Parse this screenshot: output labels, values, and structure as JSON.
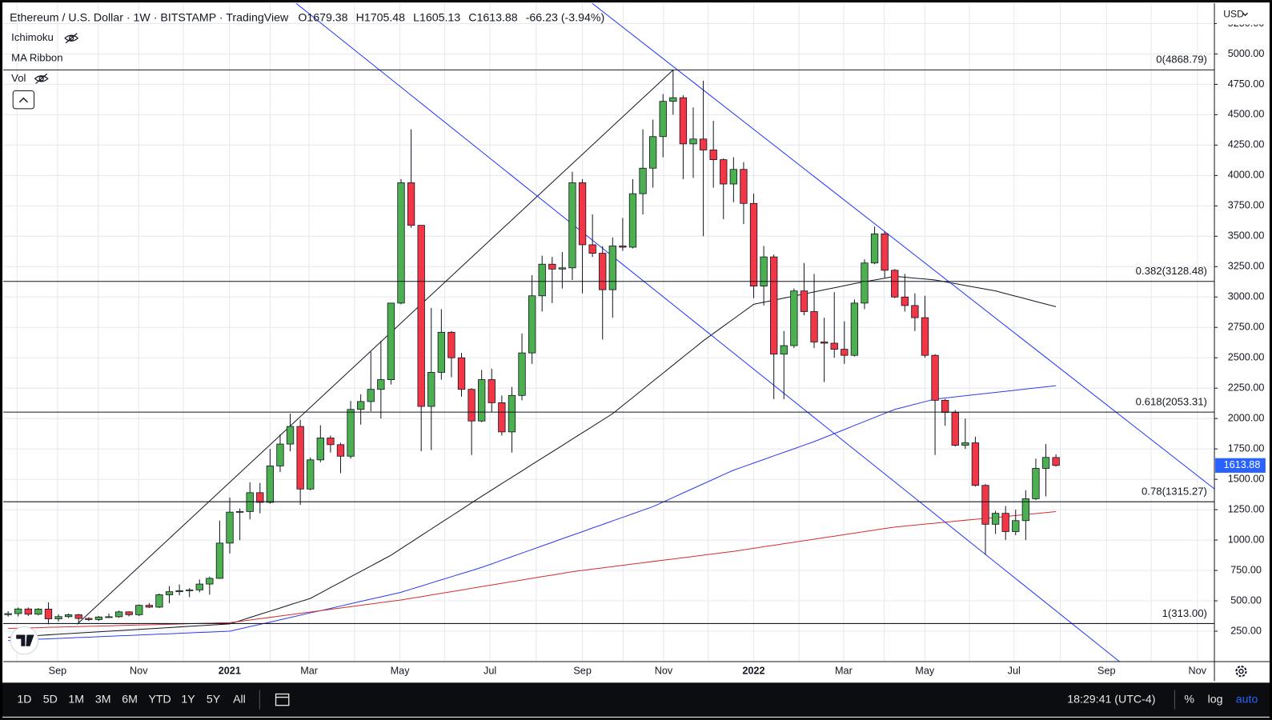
{
  "header": {
    "title": "Ethereum / U.S. Dollar · 1W · BITSTAMP · TradingView",
    "ohlc": [
      "O1679.38",
      "H1705.48",
      "L1605.13",
      "C1613.88"
    ],
    "change": "-66.23 (-3.94%)"
  },
  "indicators": [
    "Ichimoku",
    "MA Ribbon",
    "Vol"
  ],
  "currency": "USD",
  "toolbar": {
    "ranges": [
      "1D",
      "5D",
      "1M",
      "3M",
      "6M",
      "YTD",
      "1Y",
      "5Y",
      "All"
    ],
    "time": "18:29:41 (UTC-4)",
    "options": [
      "%",
      "log",
      "auto"
    ]
  },
  "chart_data": {
    "type": "candlestick",
    "up_color": "#4caf50",
    "down_color": "#f23645",
    "ylim": [
      0,
      5417
    ],
    "yticks": [
      {
        "value": 250,
        "label": "250.00"
      },
      {
        "value": 500,
        "label": "500.00"
      },
      {
        "value": 750,
        "label": "750.00"
      },
      {
        "value": 1000,
        "label": "1000.00"
      },
      {
        "value": 1250,
        "label": "1250.00"
      },
      {
        "value": 1500,
        "label": "1500.00"
      },
      {
        "value": 1750,
        "label": "1750.00"
      },
      {
        "value": 2000,
        "label": "2000.00"
      },
      {
        "value": 2250,
        "label": "2250.00"
      },
      {
        "value": 2500,
        "label": "2500.00"
      },
      {
        "value": 2750,
        "label": "2750.00"
      },
      {
        "value": 3000,
        "label": "3000.00"
      },
      {
        "value": 3250,
        "label": "3250.00"
      },
      {
        "value": 3500,
        "label": "3500.00"
      },
      {
        "value": 3750,
        "label": "3750.00"
      },
      {
        "value": 4000,
        "label": "4000.00"
      },
      {
        "value": 4250,
        "label": "4250.00"
      },
      {
        "value": 4500,
        "label": "4500.00"
      },
      {
        "value": 4750,
        "label": "4750.00"
      },
      {
        "value": 5000,
        "label": "5000.00"
      },
      {
        "value": 5250,
        "label": "5250.00"
      }
    ],
    "grid": true,
    "xtick_labels": [
      "Sep",
      "Nov",
      "2021",
      "Mar",
      "May",
      "Jul",
      "Sep",
      "Nov",
      "2022",
      "Mar",
      "May",
      "Jul",
      "Sep",
      "Nov"
    ],
    "open": [
      386,
      395,
      433,
      390,
      432,
      352,
      370,
      385,
      355,
      346,
      367,
      369,
      409,
      386,
      463,
      448,
      550,
      575,
      584,
      590,
      638,
      685,
      975,
      1230,
      1235,
      1390,
      1310,
      1610,
      1790,
      1935,
      1420,
      1660,
      1840,
      1785,
      1690,
      2075,
      2140,
      2240,
      2320,
      2950,
      3940,
      3590,
      2100,
      2380,
      2710,
      2500,
      2240,
      1980,
      2320,
      2130,
      1890,
      2190,
      2540,
      3010,
      3270,
      3230,
      3240,
      3940,
      3430,
      3360,
      3060,
      3420,
      3410,
      3850,
      4060,
      4320,
      4610,
      4640,
      4260,
      4300,
      4210,
      4130,
      3930,
      4050,
      3770,
      3090,
      3330,
      2530,
      2600,
      3050,
      2880,
      2630,
      2620,
      2570,
      2520,
      2950,
      3280,
      3520,
      3220,
      3000,
      2930,
      2830,
      2520,
      2150,
      2050,
      1780,
      1800,
      1450,
      1130,
      1220,
      1070,
      1160,
      1340,
      1590,
      1679.38
    ],
    "high": [
      415,
      445,
      445,
      440,
      488,
      388,
      395,
      392,
      365,
      375,
      395,
      420,
      414,
      470,
      482,
      560,
      621,
      635,
      605,
      675,
      700,
      1160,
      1350,
      1260,
      1475,
      1470,
      1750,
      1870,
      2040,
      1990,
      1680,
      1945,
      1860,
      1800,
      2145,
      2200,
      2550,
      2640,
      2950,
      3970,
      4380,
      3590,
      2910,
      2900,
      2720,
      2540,
      2250,
      2400,
      2410,
      2190,
      2260,
      2700,
      3180,
      3340,
      3330,
      3370,
      4030,
      3970,
      3680,
      3420,
      3490,
      3650,
      3970,
      4380,
      4460,
      4670,
      4868,
      4660,
      4560,
      4780,
      4450,
      4140,
      4150,
      4110,
      3850,
      3420,
      3350,
      2720,
      3070,
      3280,
      3190,
      2830,
      3040,
      2800,
      2980,
      3310,
      3580,
      3540,
      3230,
      3190,
      3030,
      3010,
      2530,
      2160,
      2070,
      2000,
      1850,
      1460,
      1240,
      1280,
      1250,
      1410,
      1670,
      1790,
      1705.48
    ],
    "low": [
      370,
      372,
      375,
      380,
      308,
      330,
      358,
      309,
      333,
      335,
      360,
      360,
      372,
      375,
      440,
      440,
      480,
      545,
      530,
      570,
      550,
      680,
      890,
      1000,
      1170,
      1220,
      1300,
      1560,
      1730,
      1290,
      1410,
      1640,
      1720,
      1550,
      1670,
      1950,
      2060,
      2000,
      2280,
      2940,
      3570,
      1730,
      1740,
      2320,
      2340,
      2180,
      1700,
      1970,
      2050,
      1860,
      1720,
      2150,
      2450,
      2880,
      2950,
      3070,
      3140,
      3030,
      3330,
      2650,
      2830,
      3380,
      3400,
      3680,
      3900,
      4150,
      4500,
      3970,
      3980,
      3500,
      3900,
      3640,
      3780,
      3600,
      2990,
      2930,
      2160,
      2160,
      2580,
      2850,
      2580,
      2300,
      2500,
      2450,
      2510,
      2900,
      3270,
      3160,
      2990,
      2880,
      2720,
      2500,
      1700,
      1940,
      1770,
      1750,
      1440,
      880,
      1050,
      1000,
      1040,
      1000,
      1330,
      1360,
      1605.13
    ],
    "close": [
      395,
      433,
      390,
      432,
      352,
      370,
      385,
      355,
      346,
      367,
      369,
      409,
      386,
      463,
      448,
      550,
      575,
      584,
      590,
      638,
      685,
      975,
      1230,
      1235,
      1390,
      1310,
      1610,
      1790,
      1935,
      1420,
      1660,
      1840,
      1785,
      1690,
      2075,
      2140,
      2240,
      2320,
      2950,
      3940,
      3590,
      2100,
      2380,
      2710,
      2500,
      2240,
      1980,
      2320,
      2130,
      1890,
      2190,
      2540,
      3010,
      3270,
      3230,
      3240,
      3940,
      3430,
      3360,
      3060,
      3420,
      3410,
      3850,
      4060,
      4320,
      4610,
      4640,
      4260,
      4300,
      4210,
      4130,
      3930,
      4050,
      3770,
      3090,
      3330,
      2530,
      2600,
      3050,
      2880,
      2630,
      2620,
      2570,
      2520,
      2950,
      3280,
      3520,
      3220,
      3000,
      2930,
      2830,
      2520,
      2150,
      2050,
      1780,
      1800,
      1450,
      1130,
      1220,
      1070,
      1160,
      1340,
      1590,
      1680,
      1613.88
    ],
    "ma_ribbon": [
      {
        "color": "#131722",
        "values": [
          200,
          205,
          210,
          215,
          220,
          225,
          230,
          235,
          240,
          245,
          250,
          255,
          260,
          265,
          270,
          275,
          280,
          285,
          290,
          295,
          300,
          305,
          310,
          336,
          363,
          389,
          415,
          441,
          468,
          494,
          520,
          564,
          609,
          653,
          698,
          742,
          786,
          831,
          875,
          929,
          983,
          1037,
          1091,
          1145,
          1198,
          1252,
          1306,
          1360,
          1412,
          1465,
          1517,
          1569,
          1622,
          1674,
          1726,
          1778,
          1831,
          1883,
          1935,
          1988,
          2040,
          2107,
          2173,
          2240,
          2307,
          2373,
          2440,
          2507,
          2573,
          2640,
          2700,
          2760,
          2820,
          2880,
          2940,
          2957,
          2974,
          2991,
          3008,
          3025,
          3042,
          3059,
          3076,
          3093,
          3110,
          3125,
          3140,
          3155,
          3170,
          3163,
          3155,
          3148,
          3140,
          3125,
          3110,
          3095,
          3080,
          3065,
          3050,
          3028,
          3007,
          2985,
          2963,
          2942,
          2920
        ]
      },
      {
        "color": "#2b3cf0",
        "values": [
          173,
          177,
          180,
          184,
          187,
          191,
          194,
          198,
          201,
          205,
          208,
          212,
          215,
          219,
          222,
          226,
          229,
          233,
          236,
          240,
          243,
          247,
          250,
          269,
          288,
          306,
          325,
          344,
          363,
          382,
          401,
          419,
          438,
          457,
          476,
          495,
          514,
          532,
          551,
          570,
          596,
          621,
          647,
          673,
          698,
          724,
          749,
          775,
          804,
          834,
          863,
          893,
          922,
          952,
          981,
          1011,
          1040,
          1069,
          1099,
          1128,
          1158,
          1187,
          1216,
          1246,
          1275,
          1313,
          1350,
          1388,
          1425,
          1463,
          1500,
          1538,
          1575,
          1604,
          1634,
          1663,
          1693,
          1722,
          1751,
          1781,
          1810,
          1843,
          1876,
          1909,
          1943,
          1976,
          2009,
          2042,
          2075,
          2096,
          2118,
          2139,
          2160,
          2169,
          2178,
          2188,
          2197,
          2206,
          2215,
          2224,
          2233,
          2243,
          2252,
          2261,
          2270
        ]
      },
      {
        "color": "#d32f2f",
        "values": [
          273,
          275,
          277,
          279,
          282,
          284,
          286,
          288,
          290,
          292,
          294,
          297,
          299,
          301,
          303,
          305,
          307,
          309,
          312,
          314,
          316,
          318,
          320,
          331,
          342,
          353,
          364,
          375,
          386,
          397,
          408,
          419,
          430,
          441,
          452,
          463,
          474,
          485,
          496,
          507,
          521,
          534,
          548,
          562,
          575,
          589,
          603,
          617,
          630,
          644,
          658,
          671,
          685,
          699,
          712,
          726,
          740,
          750,
          761,
          771,
          782,
          792,
          803,
          813,
          824,
          834,
          844,
          855,
          865,
          876,
          886,
          897,
          907,
          920,
          932,
          945,
          957,
          970,
          982,
          995,
          1007,
          1020,
          1032,
          1045,
          1057,
          1070,
          1082,
          1095,
          1107,
          1115,
          1123,
          1131,
          1139,
          1147,
          1155,
          1163,
          1171,
          1178,
          1186,
          1194,
          1202,
          1210,
          1218,
          1226,
          1234
        ]
      }
    ],
    "fib_levels": [
      {
        "label": "0(4868.79)",
        "value": 4868.79
      },
      {
        "label": "0.382(3128.48)",
        "value": 3128.48
      },
      {
        "label": "0.618(2053.31)",
        "value": 2053.31
      },
      {
        "label": "0.78(1315.27)",
        "value": 1315.27
      },
      {
        "label": "1(313.00)",
        "value": 313.0
      }
    ]
  }
}
